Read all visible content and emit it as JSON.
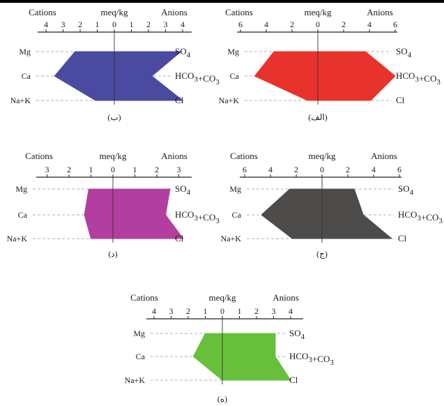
{
  "chart_data": [
    {
      "type": "stiff",
      "caption": "(ب)",
      "color": "#4a4aa0",
      "xlabel_left": "Cations",
      "xlabel_center": "meq/kg",
      "xlabel_right": "Anions",
      "xlim": [
        -4.2,
        4.2
      ],
      "ticks": [
        -4,
        -3,
        -2,
        -1,
        0,
        1,
        2,
        3,
        4
      ],
      "tick_labels": [
        "4",
        "3",
        "2",
        "1",
        "0",
        "1",
        "2",
        "3",
        "4"
      ],
      "rows": [
        {
          "cation": "Mg",
          "anion": "SO4",
          "cation_value": 2.3,
          "anion_value": 3.9
        },
        {
          "cation": "Ca",
          "anion": "HCO3+CO3",
          "cation_value": 3.5,
          "anion_value": 2.2
        },
        {
          "cation": "Na+K",
          "anion": "Cl",
          "cation_value": 1.1,
          "anion_value": 4.0
        }
      ]
    },
    {
      "type": "stiff",
      "caption": "(الف)",
      "color": "#e8322c",
      "xlabel_left": "Cations",
      "xlabel_center": "meq/kg",
      "xlabel_right": "Anions",
      "xlim": [
        -6,
        6
      ],
      "ticks": [
        -6,
        -4,
        -2,
        0,
        2,
        4,
        6
      ],
      "tick_labels": [
        "6",
        "4",
        "2",
        "0",
        "2",
        "4",
        "6"
      ],
      "rows": [
        {
          "cation": "Mg",
          "anion": "SO4",
          "cation_value": 3.4,
          "anion_value": 3.7
        },
        {
          "cation": "Ca",
          "anion": "HCO3+CO3",
          "cation_value": 4.9,
          "anion_value": 6.0
        },
        {
          "cation": "Na+K",
          "anion": "Cl",
          "cation_value": 0.8,
          "anion_value": 4.1
        }
      ]
    },
    {
      "type": "stiff",
      "caption": "(د)",
      "color": "#b23fa0",
      "xlabel_left": "Cations",
      "xlabel_center": "meq/kg",
      "xlabel_right": "Anions",
      "xlim": [
        -3.4,
        3.4
      ],
      "ticks": [
        -3,
        -2,
        -1,
        0,
        1,
        2,
        3
      ],
      "tick_labels": [
        "3",
        "2",
        "1",
        "0",
        "1",
        "2",
        "3"
      ],
      "rows": [
        {
          "cation": "Mg",
          "anion": "SO4",
          "cation_value": 1.1,
          "anion_value": 2.6
        },
        {
          "cation": "Ca",
          "anion": "HCO3+CO3",
          "cation_value": 1.3,
          "anion_value": 2.4
        },
        {
          "cation": "Na+K",
          "anion": "Cl",
          "cation_value": 1.0,
          "anion_value": 3.2
        }
      ]
    },
    {
      "type": "stiff",
      "caption": "(ج)",
      "color": "#4e4c4a",
      "xlabel_left": "Cations",
      "xlabel_center": "meq/kg",
      "xlabel_right": "Anions",
      "xlim": [
        -6,
        6
      ],
      "ticks": [
        -6,
        -4,
        -2,
        0,
        2,
        4,
        6
      ],
      "tick_labels": [
        "6",
        "4",
        "2",
        "0",
        "2",
        "4",
        "6"
      ],
      "rows": [
        {
          "cation": "Mg",
          "anion": "SO4",
          "cation_value": 2.5,
          "anion_value": 2.5
        },
        {
          "cation": "Ca",
          "anion": "HCO3+CO3",
          "cation_value": 4.7,
          "anion_value": 3.2
        },
        {
          "cation": "Na+K",
          "anion": "Cl",
          "cation_value": 2.3,
          "anion_value": 5.4
        }
      ]
    },
    {
      "type": "stiff",
      "caption": "(ه)",
      "color": "#66c03c",
      "xlabel_left": "Cations",
      "xlabel_center": "meq/kg",
      "xlabel_right": "Anions",
      "xlim": [
        -4.2,
        4.2
      ],
      "ticks": [
        -4,
        -3,
        -2,
        -1,
        0,
        1,
        2,
        3,
        4
      ],
      "tick_labels": [
        "4",
        "3",
        "2",
        "1",
        "0",
        "1",
        "2",
        "3",
        "4"
      ],
      "rows": [
        {
          "cation": "Mg",
          "anion": "SO4",
          "cation_value": 1.0,
          "anion_value": 3.1
        },
        {
          "cation": "Ca",
          "anion": "HCO3+CO3",
          "cation_value": 1.7,
          "anion_value": 3.1
        },
        {
          "cation": "Na+K",
          "anion": "Cl",
          "cation_value": 0.0,
          "anion_value": 4.0
        }
      ]
    }
  ]
}
